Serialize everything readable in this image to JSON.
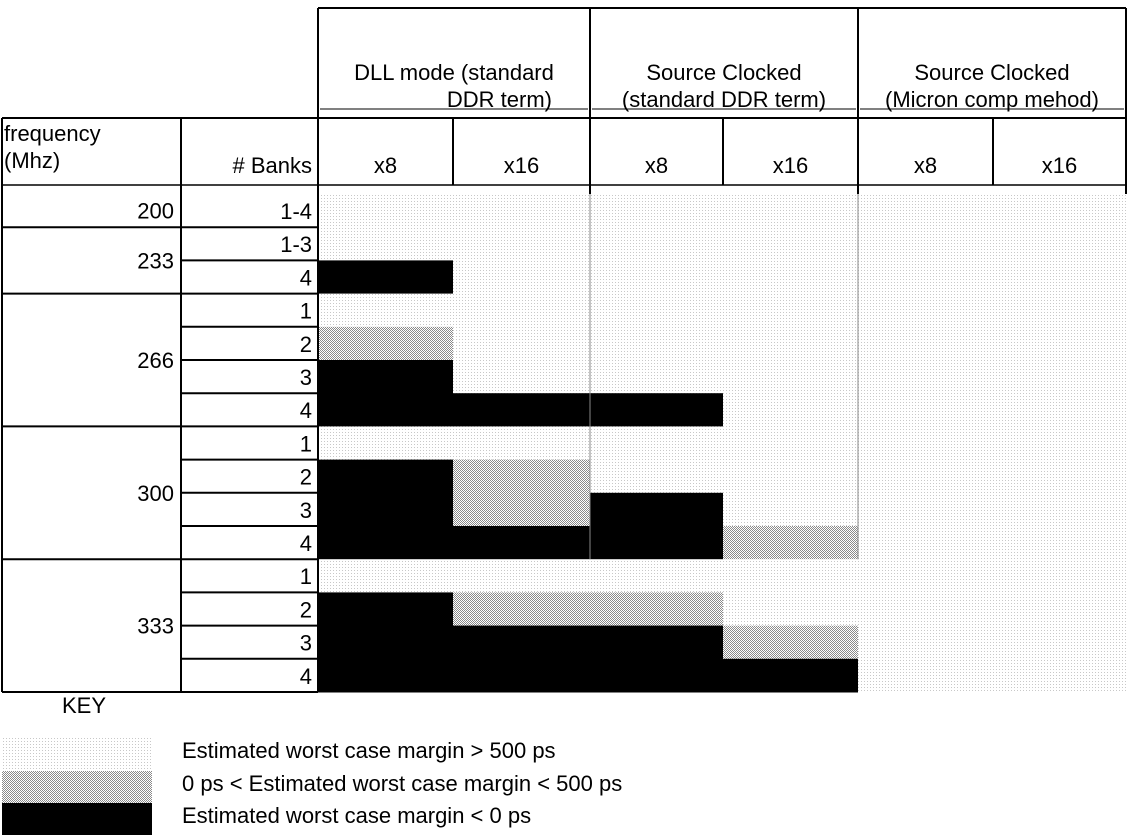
{
  "chart_data": {
    "type": "heatmap",
    "group_headers": [
      {
        "lines": [
          "DLL mode (standard",
          "DDR term)"
        ]
      },
      {
        "lines": [
          "Source Clocked",
          "(standard DDR term)"
        ]
      },
      {
        "lines": [
          "Source Clocked",
          "(Micron comp mehod)"
        ]
      }
    ],
    "row_header_1": [
      "frequency",
      "(Mhz)"
    ],
    "row_header_2": "# Banks",
    "columns": [
      "x8",
      "x16",
      "x8",
      "x16",
      "x8",
      "x16"
    ],
    "frequencies": [
      {
        "label": "200",
        "banks": [
          "1-4"
        ]
      },
      {
        "label": "233",
        "banks": [
          "1-3",
          "4"
        ]
      },
      {
        "label": "266",
        "banks": [
          "1",
          "2",
          "3",
          "4"
        ]
      },
      {
        "label": "300",
        "banks": [
          "1",
          "2",
          "3",
          "4"
        ]
      },
      {
        "label": "333",
        "banks": [
          "1",
          "2",
          "3",
          "4"
        ]
      }
    ],
    "cells": [
      [
        0,
        0,
        0,
        0,
        0,
        0
      ],
      [
        0,
        0,
        0,
        0,
        0,
        0
      ],
      [
        2,
        0,
        0,
        0,
        0,
        0
      ],
      [
        0,
        0,
        0,
        0,
        0,
        0
      ],
      [
        1,
        0,
        0,
        0,
        0,
        0
      ],
      [
        2,
        0,
        0,
        0,
        0,
        0
      ],
      [
        2,
        2,
        2,
        0,
        0,
        0
      ],
      [
        0,
        0,
        0,
        0,
        0,
        0
      ],
      [
        2,
        1,
        0,
        0,
        0,
        0
      ],
      [
        2,
        1,
        2,
        0,
        0,
        0
      ],
      [
        2,
        2,
        2,
        1,
        0,
        0
      ],
      [
        0,
        0,
        0,
        0,
        0,
        0
      ],
      [
        2,
        1,
        1,
        0,
        0,
        0
      ],
      [
        2,
        2,
        2,
        1,
        0,
        0
      ],
      [
        2,
        2,
        2,
        2,
        0,
        0
      ]
    ],
    "key": {
      "title": "KEY",
      "items": [
        {
          "level": 0,
          "label": "Estimated worst case margin > 500 ps"
        },
        {
          "level": 1,
          "label": "0 ps < Estimated worst case margin < 500 ps"
        },
        {
          "level": 2,
          "label": "Estimated worst case margin < 0 ps"
        }
      ]
    },
    "colors": {
      "level0": "#d9d9d9",
      "level1": "#a6a6a6",
      "level2": "#000000"
    }
  }
}
